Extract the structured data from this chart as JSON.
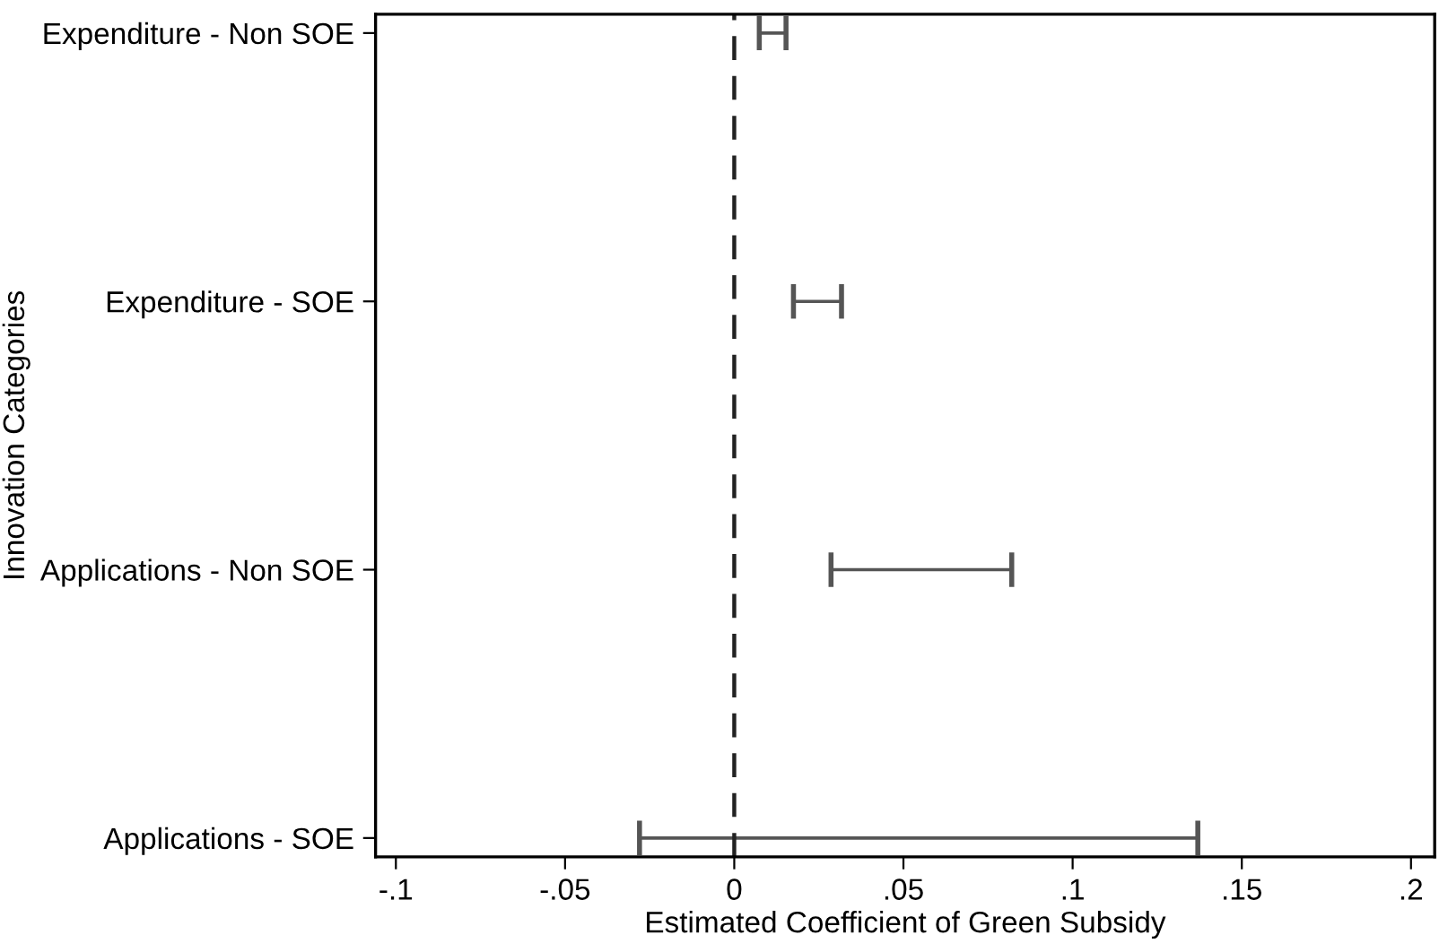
{
  "chart_data": {
    "type": "bar",
    "orientation": "horizontal",
    "categories": [
      "Expenditure - Non SOE",
      "Expenditure - SOE",
      "Applications - Non SOE",
      "Applications - SOE"
    ],
    "base": [
      0.0074,
      0.0175,
      0.0286,
      -0.028
    ],
    "values": [
      0.0079,
      0.0142,
      0.0534,
      0.165
    ],
    "color": "#555555",
    "xlabel": "Estimated Coefficient of Green Subsidy",
    "ylabel": "Innovation Categories",
    "xlim": [
      -0.106,
      0.207
    ],
    "xticks": [
      {
        "value": -0.1,
        "label": "-.1"
      },
      {
        "value": -0.05,
        "label": "-.05"
      },
      0,
      {
        "value": 0.05,
        "label": ".05"
      },
      {
        "value": 0.1,
        "label": ".1"
      },
      {
        "value": 0.15,
        "label": ".15"
      },
      {
        "value": 0.2,
        "label": ".2"
      }
    ],
    "ref_lines": [
      {
        "axis": "x",
        "value": 0,
        "label": null,
        "color": "#222222",
        "line_style": "dashed"
      }
    ],
    "grid": false,
    "legend": false
  }
}
